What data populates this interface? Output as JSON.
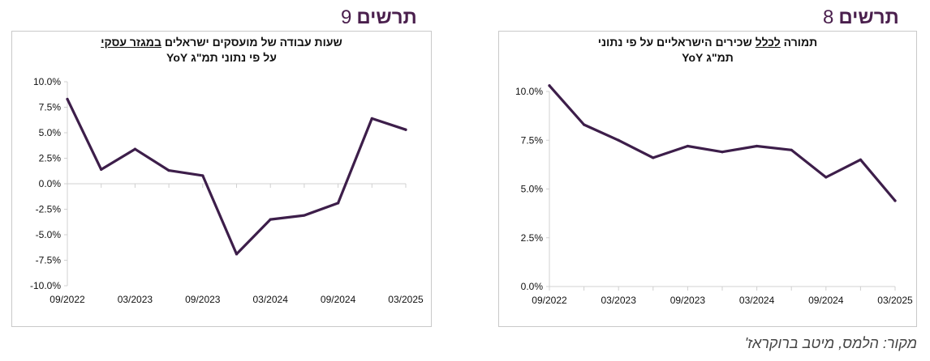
{
  "figures": {
    "left": {
      "word": "תרשים",
      "number": "9"
    },
    "right": {
      "word": "תרשים",
      "number": "8"
    }
  },
  "panels": {
    "left": {
      "title_line1_pre": "שעות עבודה של מועסקים ישראלים ",
      "title_line1_underlined": "במגזר עסקי",
      "title_line2": "על פי נתוני תמ\"ג YoY"
    },
    "right": {
      "title_line1_pre": "תמורה ",
      "title_line1_underlined": "לכלל",
      "title_line1_post": " שכירים הישראליים על פי נתוני",
      "title_line2": "תמ\"ג YoY"
    }
  },
  "source": "מקור: הלמס, מיטב ברוקראז'",
  "colors": {
    "line": "#3d1e4a",
    "axis": "#d0d0d0",
    "header": "#4a1f4d"
  },
  "chart_data": [
    {
      "type": "line",
      "id": "left",
      "x": [
        "09/2022",
        "12/2022",
        "03/2023",
        "06/2023",
        "09/2023",
        "12/2023",
        "03/2024",
        "06/2024",
        "09/2024",
        "12/2024",
        "03/2025"
      ],
      "x_tick_labels": [
        "09/2022",
        "03/2023",
        "09/2023",
        "03/2024",
        "09/2024",
        "03/2025"
      ],
      "series": [
        {
          "values": [
            8.3,
            1.4,
            3.4,
            1.3,
            0.8,
            -6.9,
            -3.5,
            -3.1,
            -1.9,
            6.4,
            5.3
          ]
        }
      ],
      "ylim": [
        -10,
        10
      ],
      "y_ticks": [
        10,
        7.5,
        5,
        2.5,
        0,
        -2.5,
        -5,
        -7.5,
        -10
      ],
      "y_tick_labels": [
        "10.0%",
        "7.5%",
        "5.0%",
        "2.5%",
        "0.0%",
        "-2.5%",
        "-5.0%",
        "-7.5%",
        "-10.0%"
      ],
      "grid": false
    },
    {
      "type": "line",
      "id": "right",
      "x": [
        "09/2022",
        "12/2022",
        "03/2023",
        "06/2023",
        "09/2023",
        "12/2023",
        "03/2024",
        "06/2024",
        "09/2024",
        "12/2024",
        "03/2025"
      ],
      "x_tick_labels": [
        "09/2022",
        "03/2023",
        "09/2023",
        "03/2024",
        "09/2024",
        "03/2025"
      ],
      "series": [
        {
          "values": [
            10.3,
            8.3,
            7.5,
            6.6,
            7.2,
            6.9,
            7.2,
            7.0,
            5.6,
            6.5,
            4.4
          ]
        }
      ],
      "ylim": [
        0,
        10
      ],
      "y_ticks": [
        10,
        7.5,
        5,
        2.5,
        0
      ],
      "y_tick_labels": [
        "10.0%",
        "7.5%",
        "5.0%",
        "2.5%",
        "0.0%"
      ],
      "grid": false
    }
  ]
}
